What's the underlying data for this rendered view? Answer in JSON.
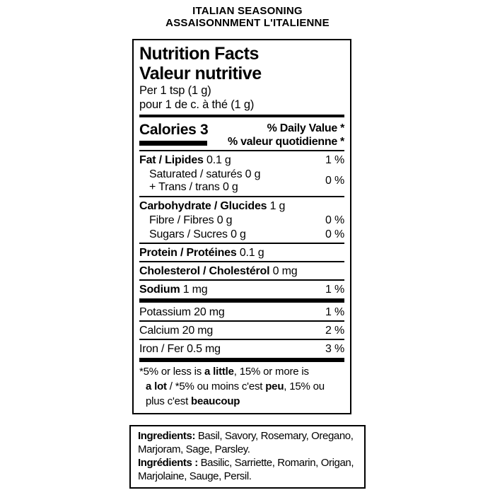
{
  "product": {
    "title_en": "ITALIAN SEASONING",
    "title_fr": "ASSAISONNMENT L'ITALIENNE"
  },
  "panel": {
    "title_en": "Nutrition Facts",
    "title_fr": "Valeur nutritive",
    "serving_en": "Per 1 tsp (1 g)",
    "serving_fr": "pour 1 de c. à thé (1 g)",
    "calories_label": "Calories",
    "calories_value": "3",
    "daily_value_en": "% Daily Value *",
    "daily_value_fr": "% valeur quotidienne *",
    "rows": {
      "fat": {
        "name": "Fat / Lipides",
        "amount": "0.1 g",
        "dv": "1 %"
      },
      "sat_trans": {
        "line1": "Saturated / saturés 0 g",
        "line2": "+ Trans / trans 0 g",
        "dv": "0 %"
      },
      "carb": {
        "name": "Carbohydrate / Glucides",
        "amount": "1 g"
      },
      "fibre": {
        "text": "Fibre / Fibres 0 g",
        "dv": "0 %"
      },
      "sugars": {
        "text": "Sugars / Sucres 0 g",
        "dv": "0 %"
      },
      "protein": {
        "name": "Protein / Protéines",
        "amount": "0.1 g"
      },
      "cholesterol": {
        "name": "Cholesterol / Cholestérol",
        "amount": "0 mg"
      },
      "sodium": {
        "name": "Sodium",
        "amount": "1 mg",
        "dv": "1 %"
      },
      "potassium": {
        "text": "Potassium 20 mg",
        "dv": "1 %"
      },
      "calcium": {
        "text": "Calcium 20 mg",
        "dv": "2 %"
      },
      "iron": {
        "text": "Iron / Fer 0.5 mg",
        "dv": "3 %"
      }
    },
    "footnote": {
      "en_pre": "*5% or less is ",
      "en_bold1": "a little",
      "en_mid": ", 15% or more is",
      "en_bold2": "a lot",
      "fr_pre": " / *5% ou moins c'est ",
      "fr_bold1": "peu",
      "fr_mid": ", 15% ou",
      "fr_tail": "plus c'est ",
      "fr_bold2": "beaucoup"
    }
  },
  "ingredients": {
    "en_label": "Ingredients:",
    "en_text": " Basil, Savory, Rosemary, Oregano, Marjoram, Sage, Parsley.",
    "fr_label": "Ingrédients :",
    "fr_text": " Basilic, Sarriette, Romarin, Origan, Marjolaine, Sauge, Persil."
  },
  "colors": {
    "text": "#000000",
    "background": "#ffffff",
    "rule": "#000000"
  }
}
